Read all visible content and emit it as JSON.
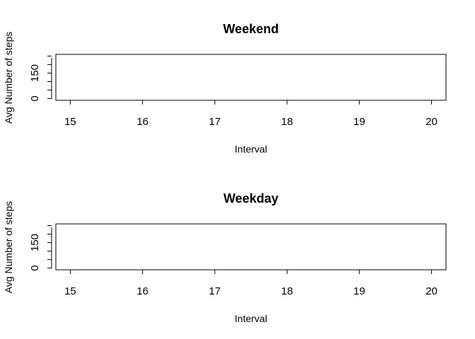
{
  "chart_data": [
    {
      "type": "line",
      "title": "Weekend",
      "xlabel": "Interval",
      "ylabel": "Avg Number of steps",
      "xlim": [
        14.8,
        20.2
      ],
      "ylim": [
        -10,
        260
      ],
      "x_ticks": [
        "15",
        "16",
        "17",
        "18",
        "19",
        "20"
      ],
      "y_ticks": [
        "0",
        "150"
      ],
      "y_minor_ticks": [
        0,
        50,
        100,
        150,
        200,
        250
      ],
      "series": [],
      "grid": false
    },
    {
      "type": "line",
      "title": "Weekday",
      "xlabel": "Interval",
      "ylabel": "Avg Number of steps",
      "xlim": [
        14.8,
        20.2
      ],
      "ylim": [
        -10,
        260
      ],
      "x_ticks": [
        "15",
        "16",
        "17",
        "18",
        "19",
        "20"
      ],
      "y_ticks": [
        "0",
        "150"
      ],
      "y_minor_ticks": [
        0,
        50,
        100,
        150,
        200,
        250
      ],
      "series": [],
      "grid": false
    }
  ]
}
